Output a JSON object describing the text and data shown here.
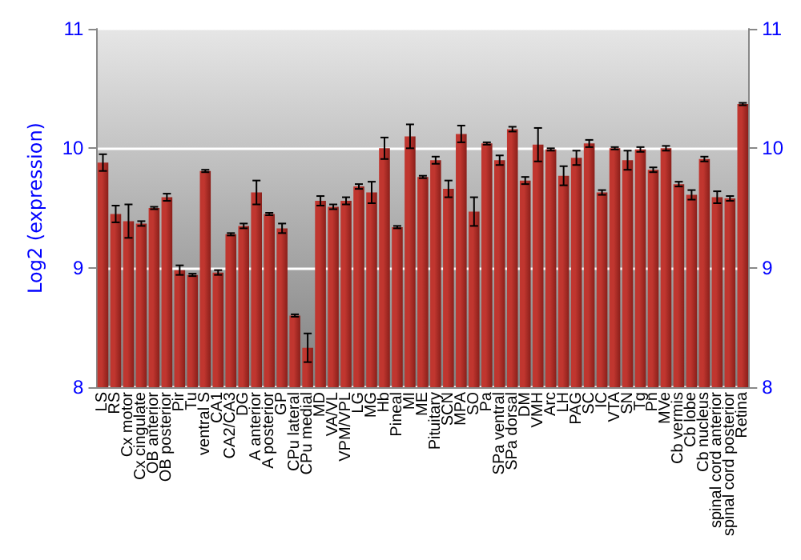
{
  "chart_data": {
    "type": "bar",
    "ylabel": "Log2 (expression)",
    "categories": [
      "LS",
      "RS",
      "Cx motor",
      "Cx cingulate",
      "OB anterior",
      "OB posterior",
      "Pir",
      "Tu",
      "ventral S",
      "CA1",
      "CA2/CA3",
      "DG",
      "A anterior",
      "A posterior",
      "GP",
      "CPu lateral",
      "CPu medial",
      "MD",
      "VA/VL",
      "VPM/VPL",
      "LG",
      "MG",
      "Hb",
      "Pineal",
      "MI",
      "ME",
      "Pituitary",
      "SCN",
      "MPA",
      "SO",
      "Pa",
      "SPa ventral",
      "SPa dorsal",
      "DM",
      "VMH",
      "Arc",
      "LH",
      "PAG",
      "SC",
      "IC",
      "VTA",
      "SN",
      "Tg",
      "Pn",
      "MVe",
      "Cb vermis",
      "Cb lobe",
      "Cb nucleus",
      "spinal cord anterior",
      "spinal cord posterior",
      "Retina"
    ],
    "values": [
      9.88,
      9.45,
      9.39,
      9.37,
      9.5,
      9.59,
      8.98,
      8.94,
      9.81,
      8.96,
      9.28,
      9.35,
      9.63,
      9.45,
      9.33,
      8.6,
      8.33,
      9.56,
      9.51,
      9.56,
      9.68,
      9.63,
      10.0,
      9.34,
      10.1,
      9.76,
      9.9,
      9.66,
      10.12,
      9.47,
      10.04,
      9.9,
      10.16,
      9.73,
      10.03,
      9.99,
      9.77,
      9.92,
      10.04,
      9.63,
      10.0,
      9.9,
      9.99,
      9.82,
      10.0,
      9.7,
      9.61,
      9.91,
      9.59,
      9.58,
      10.37
    ],
    "errors": [
      0.07,
      0.07,
      0.14,
      0.02,
      0.01,
      0.03,
      0.04,
      0.01,
      0.01,
      0.02,
      0.01,
      0.02,
      0.1,
      0.01,
      0.04,
      0.01,
      0.12,
      0.04,
      0.02,
      0.03,
      0.02,
      0.09,
      0.09,
      0.01,
      0.1,
      0.01,
      0.03,
      0.07,
      0.07,
      0.12,
      0.01,
      0.04,
      0.02,
      0.03,
      0.14,
      0.01,
      0.08,
      0.06,
      0.03,
      0.02,
      0.01,
      0.08,
      0.02,
      0.02,
      0.02,
      0.02,
      0.04,
      0.02,
      0.05,
      0.02,
      0.01
    ],
    "color": "#c0362f",
    "ylim": [
      8,
      11
    ],
    "yticks": [
      8,
      9,
      10,
      11
    ],
    "y2lim": [
      8,
      11
    ],
    "y2ticks": [
      8,
      9,
      10,
      11
    ],
    "grid": "y"
  }
}
